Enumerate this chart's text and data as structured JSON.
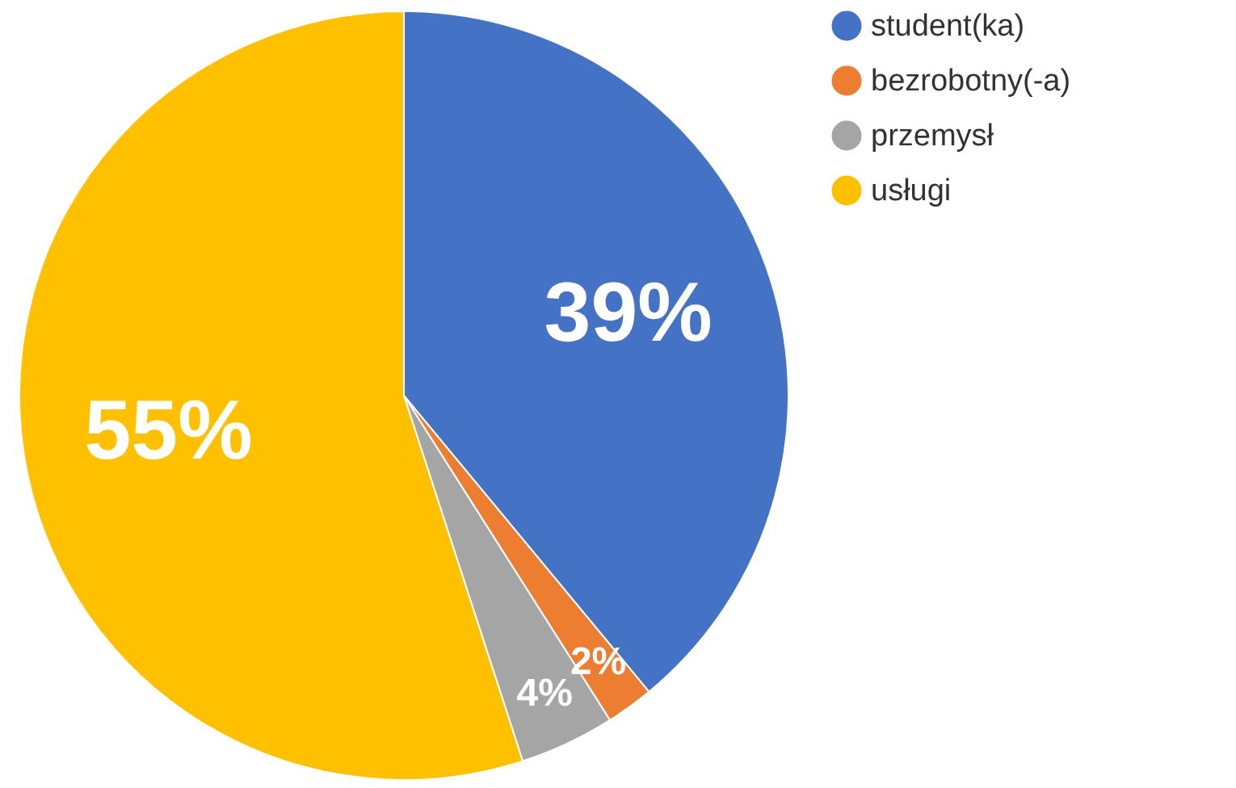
{
  "chart_data": {
    "type": "pie",
    "categories": [
      "student(ka)",
      "bezrobotny(-a)",
      "przemysł",
      "usługi"
    ],
    "values": [
      39,
      2,
      4,
      55
    ],
    "colors": [
      "#4472c4",
      "#ed7d31",
      "#a5a5a5",
      "#ffc000"
    ],
    "value_labels": [
      "39%",
      "2%",
      "4%",
      "55%"
    ],
    "legend": "right"
  }
}
